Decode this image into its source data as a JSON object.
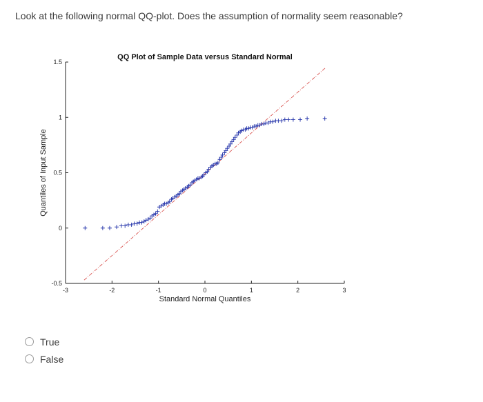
{
  "question": {
    "text": "Look at the following normal QQ-plot. Does the assumption of normality seem reasonable?"
  },
  "options": [
    {
      "label": "True"
    },
    {
      "label": "False"
    }
  ],
  "colors": {
    "points": "#1f2fa8",
    "reference_line": "#d9534f",
    "axis": "#222222"
  },
  "chart_data": {
    "type": "scatter",
    "title": "QQ Plot of Sample Data versus Standard Normal",
    "xlabel": "Standard Normal Quantiles",
    "ylabel": "Quantiles of Input Sample",
    "xlim": [
      -3,
      3
    ],
    "ylim": [
      -0.5,
      1.5
    ],
    "xticks": [
      -3,
      -2,
      -1,
      0,
      1,
      2,
      3
    ],
    "xtick_labels": [
      "-3",
      "-2",
      "-1",
      "0",
      "1",
      "2",
      "3"
    ],
    "yticks": [
      -0.5,
      0,
      0.5,
      1,
      1.5
    ],
    "ytick_labels": [
      "-0.5",
      "0",
      "0.5",
      "1",
      "1.5"
    ],
    "marker": "+",
    "reference_line": {
      "style": "dash-dot",
      "points": [
        [
          -2.6,
          -0.47
        ],
        [
          2.6,
          1.45
        ]
      ]
    },
    "series": [
      {
        "x": [
          -2.58,
          -2.2,
          -2.05,
          -1.9,
          -1.8,
          -1.72,
          -1.65,
          -1.58,
          -1.52,
          -1.46,
          -1.41,
          -1.36,
          -1.31,
          -1.27,
          -1.22,
          -1.18,
          -1.14,
          -1.1,
          -1.06,
          -1.02,
          -0.98,
          -0.94,
          -0.9,
          -0.87,
          -0.83,
          -0.79,
          -0.76,
          -0.72,
          -0.69,
          -0.65,
          -0.62,
          -0.58,
          -0.55,
          -0.52,
          -0.48,
          -0.45,
          -0.42,
          -0.38,
          -0.35,
          -0.32,
          -0.28,
          -0.25,
          -0.22,
          -0.18,
          -0.15,
          -0.12,
          -0.08,
          -0.05,
          -0.02,
          0.02,
          0.05,
          0.08,
          0.12,
          0.15,
          0.18,
          0.22,
          0.25,
          0.28,
          0.32,
          0.35,
          0.38,
          0.42,
          0.45,
          0.48,
          0.52,
          0.55,
          0.58,
          0.62,
          0.65,
          0.69,
          0.72,
          0.76,
          0.79,
          0.83,
          0.87,
          0.9,
          0.94,
          0.98,
          1.02,
          1.06,
          1.1,
          1.14,
          1.18,
          1.22,
          1.27,
          1.31,
          1.36,
          1.41,
          1.46,
          1.52,
          1.58,
          1.65,
          1.72,
          1.8,
          1.9,
          2.05,
          2.2,
          2.58
        ],
        "y": [
          0.0,
          0.0,
          0.0,
          0.01,
          0.02,
          0.02,
          0.03,
          0.03,
          0.04,
          0.04,
          0.05,
          0.05,
          0.06,
          0.07,
          0.08,
          0.09,
          0.11,
          0.12,
          0.13,
          0.15,
          0.19,
          0.2,
          0.21,
          0.22,
          0.22,
          0.23,
          0.24,
          0.26,
          0.27,
          0.28,
          0.29,
          0.3,
          0.31,
          0.33,
          0.34,
          0.35,
          0.36,
          0.37,
          0.38,
          0.39,
          0.41,
          0.42,
          0.43,
          0.44,
          0.45,
          0.45,
          0.46,
          0.47,
          0.48,
          0.5,
          0.51,
          0.53,
          0.55,
          0.56,
          0.57,
          0.58,
          0.58,
          0.59,
          0.62,
          0.64,
          0.66,
          0.68,
          0.7,
          0.72,
          0.74,
          0.76,
          0.78,
          0.8,
          0.82,
          0.84,
          0.86,
          0.87,
          0.88,
          0.89,
          0.89,
          0.9,
          0.9,
          0.91,
          0.91,
          0.92,
          0.92,
          0.93,
          0.93,
          0.94,
          0.94,
          0.95,
          0.95,
          0.96,
          0.96,
          0.97,
          0.97,
          0.97,
          0.98,
          0.98,
          0.98,
          0.98,
          0.99,
          0.99
        ]
      }
    ]
  }
}
